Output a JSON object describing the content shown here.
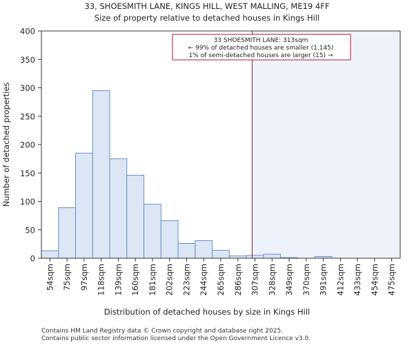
{
  "header": {
    "title_line1": "33, SHOESMITH LANE, KINGS HILL, WEST MALLING, ME19 4FF",
    "title_line2": "Size of property relative to detached houses in Kings Hill"
  },
  "footer": {
    "line1": "Contains HM Land Registry data © Crown copyright and database right 2025.",
    "line2": "Contains public sector information licensed under the Open Government Licence v3.0."
  },
  "chart_data": {
    "type": "bar",
    "title": "Size of property relative to detached houses in Kings Hill",
    "xlabel": "Distribution of detached houses by size in Kings Hill",
    "ylabel": "Number of detached properties",
    "ylim": [
      0,
      400
    ],
    "yticks": [
      0,
      50,
      100,
      150,
      200,
      250,
      300,
      350,
      400
    ],
    "categories": [
      "54sqm",
      "75sqm",
      "97sqm",
      "118sqm",
      "139sqm",
      "160sqm",
      "181sqm",
      "202sqm",
      "223sqm",
      "244sqm",
      "265sqm",
      "286sqm",
      "307sqm",
      "328sqm",
      "349sqm",
      "370sqm",
      "391sqm",
      "412sqm",
      "433sqm",
      "454sqm",
      "475sqm"
    ],
    "values": [
      13,
      89,
      185,
      295,
      175,
      146,
      95,
      66,
      26,
      31,
      14,
      4,
      5,
      7,
      1,
      0,
      3,
      0,
      0,
      0,
      0
    ],
    "marker": {
      "value_sqm": 313,
      "label_line1": "33 SHOESMITH LANE: 313sqm",
      "label_line2": "← 99% of detached houses are smaller (1,145)",
      "label_line3": "1% of semi-detached houses are larger (15) →"
    },
    "grid": false,
    "colors": {
      "bar_fill": "#dce6f4",
      "bar_stroke": "#6a8fc7",
      "marker_line": "#8b1a2a",
      "annotation_border": "#b0182a",
      "shade": "#eef2fb"
    }
  }
}
